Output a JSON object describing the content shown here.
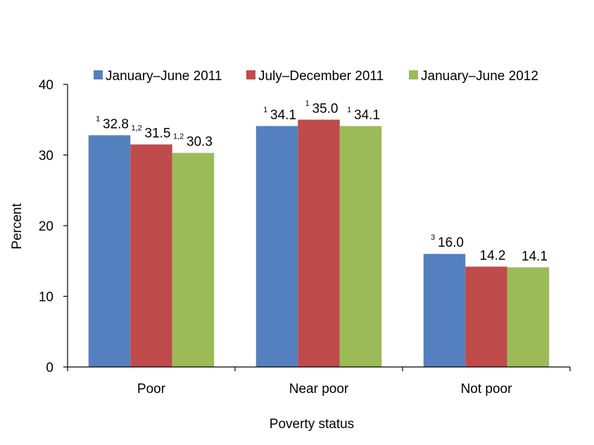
{
  "chart_data": {
    "type": "bar",
    "title": "",
    "xlabel": "Poverty status",
    "ylabel": "Percent",
    "ylim": [
      0,
      40
    ],
    "yticks": [
      0,
      10,
      20,
      30,
      40
    ],
    "grid": false,
    "legend_position": "top",
    "categories": [
      "Poor",
      "Near poor",
      "Not poor"
    ],
    "series": [
      {
        "name": "January–June 2011",
        "color": "#5580BF",
        "values": [
          32.8,
          34.1,
          16.0
        ],
        "labels": [
          "32.8",
          "34.1",
          "16.0"
        ],
        "footnotes": [
          "1",
          "1",
          "3"
        ]
      },
      {
        "name": "July–December 2011",
        "color": "#BF4B4B",
        "values": [
          31.5,
          35.0,
          14.2
        ],
        "labels": [
          "31.5",
          "35.0",
          "14.2"
        ],
        "footnotes": [
          "1,2",
          "1",
          ""
        ]
      },
      {
        "name": "January–June 2012",
        "color": "#9BBB59",
        "values": [
          30.3,
          34.1,
          14.1
        ],
        "labels": [
          "30.3",
          "34.1",
          "14.1"
        ],
        "footnotes": [
          "1,2",
          "1",
          ""
        ]
      }
    ]
  }
}
